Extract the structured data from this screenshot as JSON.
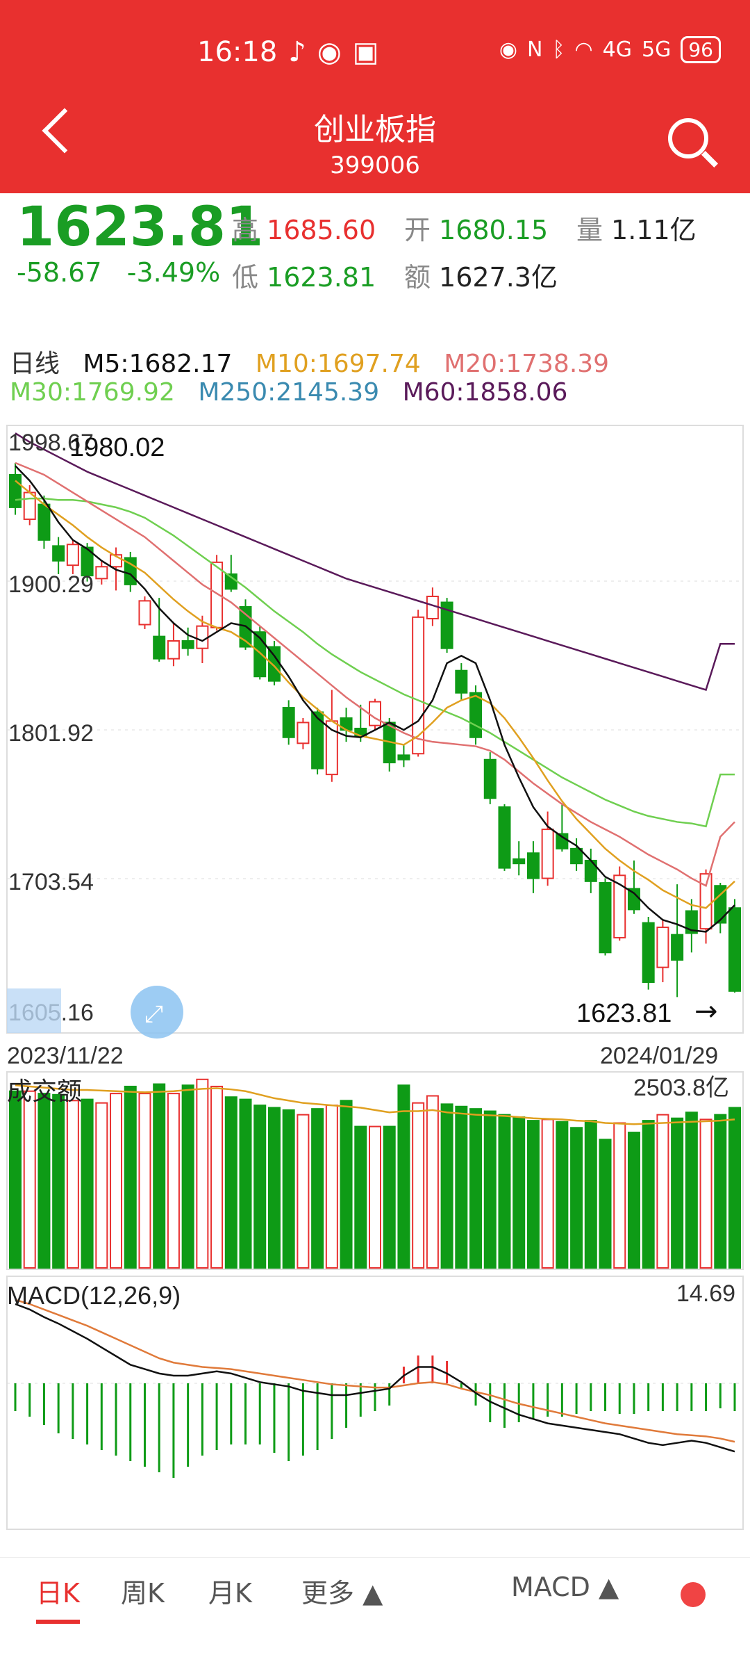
{
  "status": {
    "time": "16:18",
    "battery": "96",
    "net1": "4G",
    "net2": "5G"
  },
  "header": {
    "title": "创业板指",
    "code": "399006"
  },
  "quote": {
    "price": "1623.81",
    "change": "-58.67",
    "change_pct": "-3.49%",
    "high_label": "高",
    "high": "1685.60",
    "open_label": "开",
    "open": "1680.15",
    "vol_label": "量",
    "vol": "1.11亿",
    "low_label": "低",
    "low": "1623.81",
    "amt_label": "额",
    "amt": "1627.3亿"
  },
  "ma": {
    "period": "日线",
    "m5": "M5:1682.17",
    "m10": "M10:1697.74",
    "m20": "M20:1738.39",
    "m30": "M30:1769.92",
    "m250": "M250:2145.39",
    "m60": "M60:1858.06"
  },
  "colors": {
    "up": "#e8302f",
    "down": "#0e9b16",
    "m5": "#111111",
    "m10": "#e0a020",
    "m20": "#e07070",
    "m30": "#6fcf50",
    "m60": "#5a1a5a",
    "m250": "#3a8ab0"
  },
  "chart_data": {
    "type": "candlestick",
    "y_ticks": [
      "1998.67",
      "1900.29",
      "1801.92",
      "1703.54",
      "1605.16"
    ],
    "max_label": "1980.02",
    "last_label": "1623.81",
    "date_start": "2023/11/22",
    "date_end": "2024/01/29",
    "volume_label": "成交额",
    "volume_max": "2503.8亿",
    "macd_label": "MACD(12,26,9)",
    "macd_max": "14.69",
    "candles": [
      {
        "o": 1972,
        "c": 1950,
        "h": 1980,
        "l": 1945
      },
      {
        "o": 1942,
        "c": 1960,
        "h": 1965,
        "l": 1938
      },
      {
        "o": 1952,
        "c": 1928,
        "h": 1958,
        "l": 1922
      },
      {
        "o": 1924,
        "c": 1914,
        "h": 1930,
        "l": 1905
      },
      {
        "o": 1911,
        "c": 1925,
        "h": 1928,
        "l": 1905
      },
      {
        "o": 1923,
        "c": 1904,
        "h": 1926,
        "l": 1900
      },
      {
        "o": 1902,
        "c": 1910,
        "h": 1914,
        "l": 1898
      },
      {
        "o": 1910,
        "c": 1918,
        "h": 1923,
        "l": 1894
      },
      {
        "o": 1916,
        "c": 1898,
        "h": 1920,
        "l": 1893
      },
      {
        "o": 1871,
        "c": 1887,
        "h": 1890,
        "l": 1868
      },
      {
        "o": 1863,
        "c": 1848,
        "h": 1889,
        "l": 1846
      },
      {
        "o": 1848,
        "c": 1860,
        "h": 1872,
        "l": 1843
      },
      {
        "o": 1860,
        "c": 1855,
        "h": 1869,
        "l": 1850
      },
      {
        "o": 1855,
        "c": 1870,
        "h": 1877,
        "l": 1845
      },
      {
        "o": 1869,
        "c": 1913,
        "h": 1918,
        "l": 1867
      },
      {
        "o": 1905,
        "c": 1895,
        "h": 1918,
        "l": 1893
      },
      {
        "o": 1883,
        "c": 1856,
        "h": 1888,
        "l": 1854
      },
      {
        "o": 1866,
        "c": 1836,
        "h": 1870,
        "l": 1834
      },
      {
        "o": 1856,
        "c": 1833,
        "h": 1860,
        "l": 1830
      },
      {
        "o": 1815,
        "c": 1795,
        "h": 1820,
        "l": 1790
      },
      {
        "o": 1791,
        "c": 1805,
        "h": 1808,
        "l": 1787
      },
      {
        "o": 1812,
        "c": 1774,
        "h": 1815,
        "l": 1770
      },
      {
        "o": 1770,
        "c": 1806,
        "h": 1827,
        "l": 1765
      },
      {
        "o": 1808,
        "c": 1800,
        "h": 1815,
        "l": 1792
      },
      {
        "o": 1801,
        "c": 1796,
        "h": 1817,
        "l": 1792
      },
      {
        "o": 1803,
        "c": 1819,
        "h": 1821,
        "l": 1800
      },
      {
        "o": 1805,
        "c": 1778,
        "h": 1808,
        "l": 1772
      },
      {
        "o": 1783,
        "c": 1780,
        "h": 1790,
        "l": 1775
      },
      {
        "o": 1784,
        "c": 1876,
        "h": 1881,
        "l": 1782
      },
      {
        "o": 1875,
        "c": 1890,
        "h": 1896,
        "l": 1870
      },
      {
        "o": 1886,
        "c": 1855,
        "h": 1889,
        "l": 1852
      },
      {
        "o": 1840,
        "c": 1825,
        "h": 1845,
        "l": 1820
      },
      {
        "o": 1825,
        "c": 1795,
        "h": 1830,
        "l": 1790
      },
      {
        "o": 1780,
        "c": 1754,
        "h": 1785,
        "l": 1750
      },
      {
        "o": 1748,
        "c": 1707,
        "h": 1750,
        "l": 1705
      },
      {
        "o": 1713,
        "c": 1710,
        "h": 1725,
        "l": 1702
      },
      {
        "o": 1717,
        "c": 1700,
        "h": 1725,
        "l": 1690
      },
      {
        "o": 1700,
        "c": 1733,
        "h": 1745,
        "l": 1695
      },
      {
        "o": 1730,
        "c": 1720,
        "h": 1750,
        "l": 1718
      },
      {
        "o": 1720,
        "c": 1710,
        "h": 1727,
        "l": 1705
      },
      {
        "o": 1712,
        "c": 1698,
        "h": 1720,
        "l": 1690
      },
      {
        "o": 1697,
        "c": 1650,
        "h": 1700,
        "l": 1648
      },
      {
        "o": 1660,
        "c": 1702,
        "h": 1708,
        "l": 1658
      },
      {
        "o": 1693,
        "c": 1679,
        "h": 1712,
        "l": 1676
      },
      {
        "o": 1670,
        "c": 1630,
        "h": 1674,
        "l": 1625
      },
      {
        "o": 1640,
        "c": 1667,
        "h": 1672,
        "l": 1630
      },
      {
        "o": 1662,
        "c": 1645,
        "h": 1696,
        "l": 1620
      },
      {
        "o": 1678,
        "c": 1663,
        "h": 1686,
        "l": 1650
      },
      {
        "o": 1666,
        "c": 1703,
        "h": 1706,
        "l": 1656
      },
      {
        "o": 1695,
        "c": 1670,
        "h": 1697,
        "l": 1663
      },
      {
        "o": 1680,
        "c": 1624,
        "h": 1686,
        "l": 1623
      }
    ],
    "ma5": [
      1978,
      1968,
      1955,
      1940,
      1928,
      1922,
      1914,
      1908,
      1905,
      1895,
      1882,
      1872,
      1864,
      1860,
      1866,
      1872,
      1870,
      1862,
      1850,
      1836,
      1820,
      1808,
      1800,
      1796,
      1795,
      1800,
      1805,
      1800,
      1806,
      1820,
      1845,
      1850,
      1845,
      1820,
      1790,
      1768,
      1748,
      1735,
      1728,
      1722,
      1712,
      1701,
      1696,
      1690,
      1680,
      1672,
      1669,
      1665,
      1664,
      1672,
      1682
    ],
    "ma10": [
      1968,
      1960,
      1952,
      1945,
      1938,
      1930,
      1923,
      1917,
      1912,
      1906,
      1897,
      1888,
      1880,
      1873,
      1869,
      1866,
      1860,
      1852,
      1843,
      1832,
      1822,
      1814,
      1806,
      1800,
      1796,
      1794,
      1792,
      1790,
      1796,
      1805,
      1815,
      1820,
      1823,
      1818,
      1808,
      1795,
      1781,
      1766,
      1752,
      1740,
      1730,
      1720,
      1712,
      1705,
      1699,
      1692,
      1687,
      1682,
      1680,
      1689,
      1698
    ],
    "ma20": [
      1980,
      1976,
      1972,
      1966,
      1960,
      1954,
      1948,
      1942,
      1936,
      1930,
      1922,
      1914,
      1906,
      1898,
      1892,
      1886,
      1878,
      1870,
      1862,
      1854,
      1846,
      1838,
      1830,
      1822,
      1815,
      1808,
      1803,
      1798,
      1794,
      1792,
      1791,
      1790,
      1789,
      1786,
      1780,
      1772,
      1764,
      1757,
      1750,
      1744,
      1738,
      1733,
      1728,
      1722,
      1716,
      1711,
      1706,
      1700,
      1695,
      1728,
      1738
    ],
    "ma30": [
      1955,
      1956,
      1956,
      1955,
      1955,
      1954,
      1952,
      1950,
      1947,
      1943,
      1937,
      1931,
      1924,
      1917,
      1910,
      1903,
      1896,
      1888,
      1880,
      1873,
      1866,
      1858,
      1851,
      1845,
      1839,
      1834,
      1829,
      1824,
      1820,
      1816,
      1812,
      1808,
      1803,
      1798,
      1792,
      1786,
      1780,
      1774,
      1768,
      1763,
      1758,
      1753,
      1749,
      1745,
      1742,
      1740,
      1738,
      1737,
      1735,
      1770,
      1770
    ],
    "ma60": [
      2000,
      1994,
      1989,
      1984,
      1979,
      1974,
      1970,
      1966,
      1962,
      1958,
      1954,
      1950,
      1946,
      1942,
      1938,
      1934,
      1930,
      1926,
      1922,
      1918,
      1914,
      1910,
      1906,
      1902,
      1899,
      1896,
      1893,
      1890,
      1887,
      1884,
      1881,
      1878,
      1875,
      1872,
      1869,
      1866,
      1863,
      1860,
      1857,
      1854,
      1851,
      1848,
      1845,
      1842,
      1839,
      1836,
      1833,
      1830,
      1827,
      1858,
      1858
    ],
    "volumes": [
      1500,
      1500,
      1480,
      1470,
      1420,
      1430,
      1400,
      1480,
      1540,
      1480,
      1560,
      1480,
      1550,
      1600,
      1540,
      1450,
      1430,
      1380,
      1360,
      1340,
      1300,
      1350,
      1380,
      1420,
      1200,
      1200,
      1200,
      1550,
      1400,
      1460,
      1390,
      1370,
      1350,
      1330,
      1300,
      1280,
      1250,
      1260,
      1240,
      1190,
      1250,
      1090,
      1230,
      1150,
      1250,
      1300,
      1270,
      1320,
      1260,
      1300,
      1360
    ],
    "vol_ma": [
      1550,
      1540,
      1530,
      1520,
      1510,
      1510,
      1505,
      1500,
      1495,
      1490,
      1495,
      1500,
      1510,
      1520,
      1525,
      1515,
      1500,
      1470,
      1440,
      1420,
      1400,
      1390,
      1380,
      1370,
      1360,
      1340,
      1320,
      1330,
      1330,
      1340,
      1320,
      1310,
      1300,
      1295,
      1290,
      1280,
      1270,
      1265,
      1260,
      1250,
      1245,
      1230,
      1225,
      1220,
      1225,
      1230,
      1235,
      1240,
      1245,
      1250,
      1260
    ],
    "macd_hist": [
      -10,
      -12,
      -15,
      -18,
      -20,
      -22,
      -24,
      -26,
      -28,
      -30,
      -32,
      -34,
      -30,
      -26,
      -24,
      -22,
      -22,
      -22,
      -25,
      -28,
      -26,
      -24,
      -20,
      -16,
      -12,
      -10,
      -8,
      6,
      10,
      10,
      8,
      -2,
      -8,
      -14,
      -16,
      -14,
      -13,
      -12,
      -12,
      -11,
      -10,
      -10,
      -11,
      -11,
      -10,
      -10,
      -10,
      -10,
      -10,
      -9,
      -10
    ],
    "dif": [
      -40,
      -45,
      -52,
      -58,
      -65,
      -72,
      -80,
      -88,
      -96,
      -100,
      -104,
      -106,
      -106,
      -104,
      -102,
      -104,
      -108,
      -112,
      -114,
      -116,
      -120,
      -122,
      -124,
      -124,
      -122,
      -120,
      -118,
      -106,
      -98,
      -98,
      -104,
      -112,
      -122,
      -130,
      -136,
      -142,
      -146,
      -150,
      -152,
      -154,
      -156,
      -158,
      -160,
      -164,
      -168,
      -170,
      -168,
      -166,
      -168,
      -172,
      -176
    ],
    "dea": [
      -36,
      -40,
      -45,
      -50,
      -55,
      -60,
      -66,
      -72,
      -78,
      -84,
      -90,
      -94,
      -96,
      -98,
      -99,
      -100,
      -102,
      -104,
      -106,
      -108,
      -110,
      -112,
      -114,
      -115,
      -116,
      -117,
      -117,
      -115,
      -113,
      -112,
      -114,
      -118,
      -121,
      -124,
      -128,
      -132,
      -135,
      -138,
      -141,
      -144,
      -147,
      -150,
      -152,
      -154,
      -156,
      -158,
      -160,
      -161,
      -162,
      -164,
      -167
    ]
  },
  "bottom": {
    "tab_day": "日K",
    "tab_week": "周K",
    "tab_month": "月K",
    "tab_more": "更多 ▲",
    "indicator": "MACD ▲"
  }
}
